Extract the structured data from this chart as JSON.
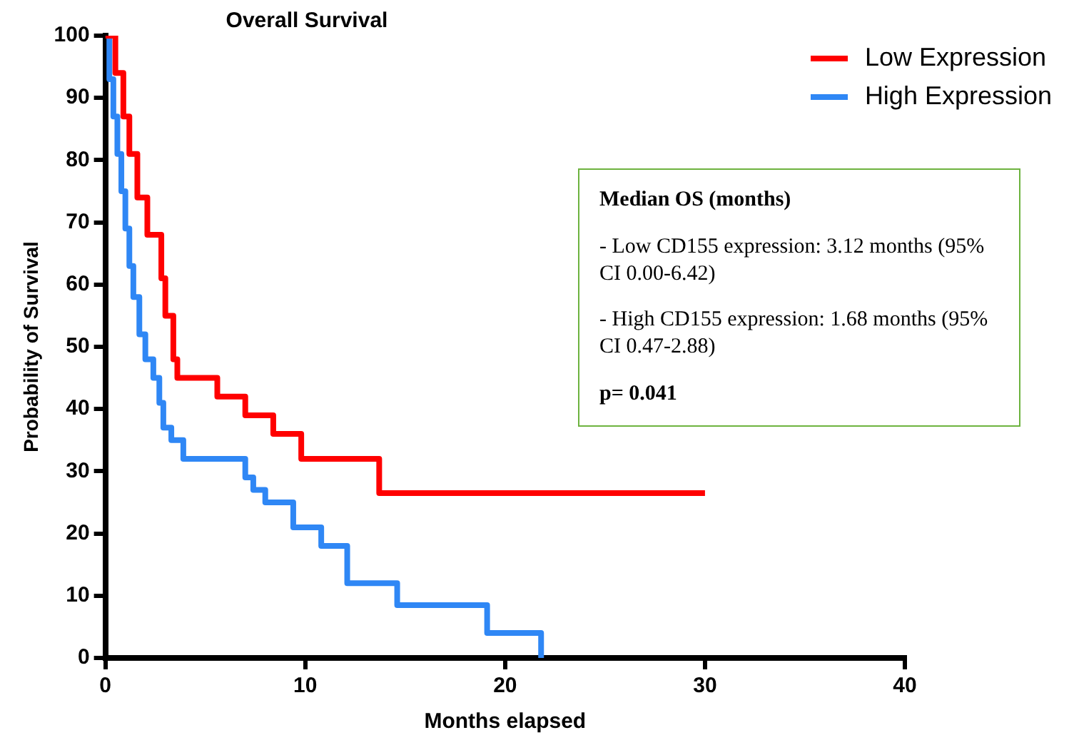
{
  "chart_data": {
    "type": "step",
    "title": "Overall Survival",
    "xlabel": "Months elapsed",
    "ylabel": "Probability of Survival",
    "xlim": [
      0,
      40
    ],
    "xticks": [
      0,
      10,
      20,
      30,
      40
    ],
    "ylim": [
      0,
      100
    ],
    "yticks": [
      0,
      10,
      20,
      30,
      40,
      50,
      60,
      70,
      80,
      90,
      100
    ],
    "grid": false,
    "legend": "top right",
    "marker": "none",
    "line_style": "solid",
    "series": [
      {
        "name": "Low Expression",
        "color": "#ff0000",
        "x": [
          0,
          0.5,
          0.9,
          1.2,
          1.6,
          2.1,
          2.8,
          3.0,
          3.4,
          3.6,
          5.6,
          7.0,
          8.4,
          9.8,
          13.7,
          30
        ],
        "values": [
          100,
          94,
          87,
          81,
          74,
          68,
          61,
          55,
          48,
          45,
          42,
          39,
          36,
          32,
          26.5,
          26.5
        ]
      },
      {
        "name": "High Expression",
        "color": "#2f87f5",
        "x": [
          0,
          0.2,
          0.4,
          0.6,
          0.8,
          1.0,
          1.2,
          1.4,
          1.7,
          2.0,
          2.4,
          2.7,
          2.9,
          3.3,
          3.9,
          7.0,
          7.4,
          8.0,
          9.4,
          10.8,
          12.1,
          14.6,
          19.1,
          21.8
        ],
        "values": [
          100,
          93,
          87,
          81,
          75,
          69,
          63,
          58,
          52,
          48,
          45,
          41,
          37,
          35,
          32,
          29,
          27,
          25,
          21,
          18,
          12,
          8.5,
          4,
          0
        ]
      }
    ],
    "annotations": [
      "Median OS (months)",
      "- Low CD155 expression: 3.12 months (95% CI 0.00-6.42)",
      "- High CD155 expression: 1.68 months (95% CI 0.47-2.88)",
      "p= 0.041"
    ]
  }
}
